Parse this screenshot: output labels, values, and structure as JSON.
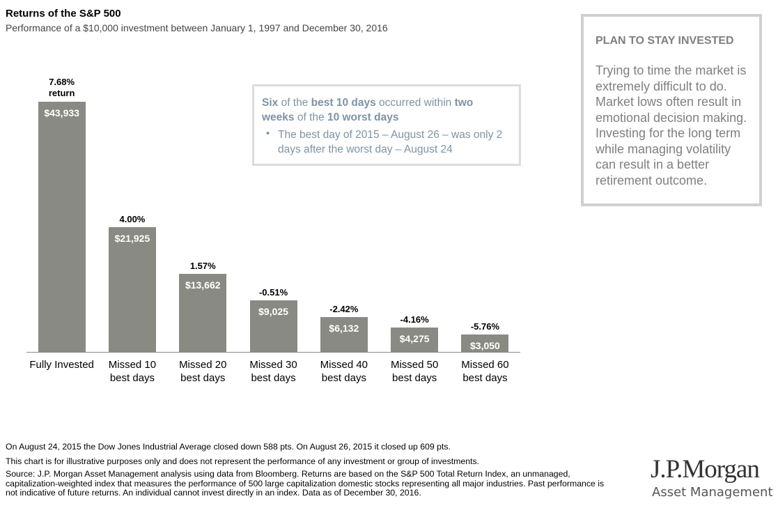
{
  "chart_data": {
    "type": "bar",
    "title": "Returns of the S&P 500",
    "subtitle": "Performance of a $10,000 investment between January 1, 1997 and December 30, 2016",
    "categories": [
      "Fully Invested",
      "Missed 10 best days",
      "Missed 20 best days",
      "Missed 30 best days",
      "Missed 40 best days",
      "Missed 50 best days",
      "Missed 60 best days"
    ],
    "values": [
      43933,
      21925,
      13662,
      9025,
      6132,
      4275,
      3050
    ],
    "value_labels": [
      "$43,933",
      "$21,925",
      "$13,662",
      "$9,025",
      "$6,132",
      "$4,275",
      "$3,050"
    ],
    "return_labels": [
      "7.68%",
      "4.00%",
      "1.57%",
      "-0.51%",
      "-2.42%",
      "-4.16%",
      "-5.76%"
    ],
    "return_word": "return",
    "color": "#8a8a84",
    "callout": {
      "heading_parts": [
        "Six",
        " of the ",
        "best 10 days",
        " occurred within ",
        "two weeks",
        " of the ",
        "10 worst days"
      ],
      "bullet": "The best day of 2015 – August 26 – was only 2 days after the worst day – August 24"
    }
  },
  "sidebar": {
    "title": "PLAN TO STAY INVESTED",
    "body": "Trying to time the market is extremely difficult to do. Market lows often result in emotional decision making. Investing for the long term while managing volatility can result in a better retirement outcome."
  },
  "footnotes": [
    "On August 24, 2015 the Dow Jones Industrial Average closed down 588 pts. On August 26, 2015 it closed up 609 pts.",
    "This chart is for illustrative purposes only and does not represent the performance of any investment or group of investments.",
    "Source: J.P. Morgan Asset Management analysis using data from Bloomberg. Returns are based on the S&P 500 Total Return Index, an unmanaged, capitalization-weighted index that measures the performance of 500 large capitalization domestic stocks representing all major industries. Past performance is not indicative of future returns. An individual cannot invest directly in an index. Data as of December 30, 2016."
  ],
  "logo": {
    "name": "J.P.Morgan",
    "tagline": "Asset Management"
  }
}
